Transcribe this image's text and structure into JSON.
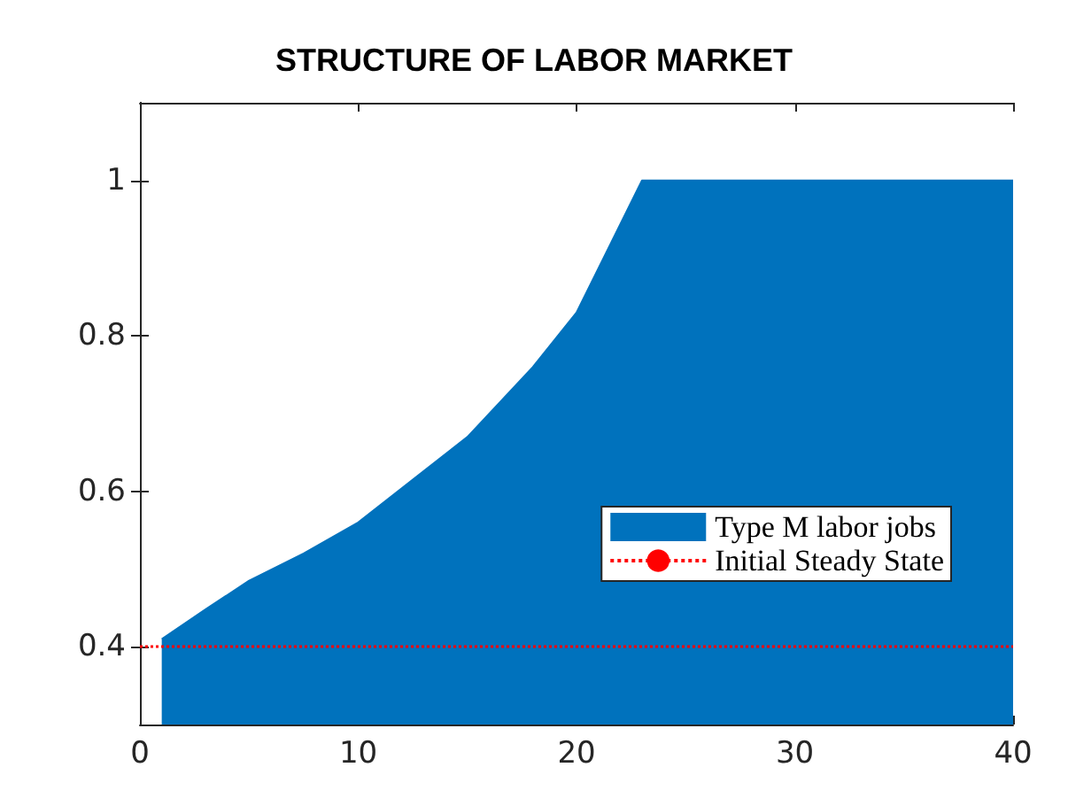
{
  "chart_data": {
    "type": "area",
    "title": "STRUCTURE OF LABOR MARKET",
    "series": [
      {
        "name": "Type M labor jobs",
        "color": "#0072bd",
        "x": [
          1,
          3,
          5,
          7.5,
          10,
          12.5,
          15,
          18,
          20,
          23,
          40
        ],
        "values": [
          0.41,
          0.448,
          0.485,
          0.52,
          0.56,
          0.615,
          0.67,
          0.76,
          0.83,
          1,
          1
        ]
      }
    ],
    "ref_lines": [
      {
        "axis": "y",
        "value": 0.4,
        "label": "Initial Steady State",
        "color": "#ff0000",
        "line_style": "dotted"
      }
    ],
    "xlim": [
      0,
      40
    ],
    "xticks": [
      0,
      10,
      20,
      30,
      40
    ],
    "ylim": [
      0.3,
      1.1
    ],
    "yticks": [
      0.4,
      0.6,
      0.8,
      1
    ],
    "grid": false,
    "legend": "right"
  }
}
